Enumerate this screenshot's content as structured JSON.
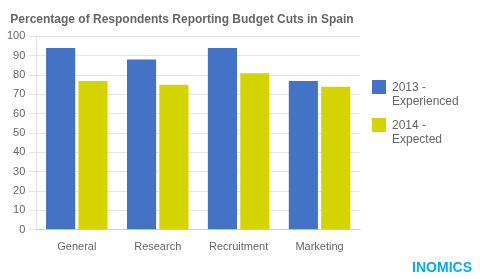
{
  "chart_data": {
    "type": "bar",
    "title": "Percentage of Respondents Reporting Budget Cuts in Spain",
    "categories": [
      "General",
      "Research",
      "Recruitment",
      "Marketing"
    ],
    "series": [
      {
        "name": "2013 -\nExperienced",
        "color": "#4472C4",
        "values": [
          94,
          88,
          94,
          77
        ]
      },
      {
        "name": "2014 -\nExpected",
        "color": "#D4D400",
        "values": [
          77,
          75,
          81,
          74
        ]
      }
    ],
    "ylim": [
      0,
      100
    ],
    "yticks": [
      0,
      10,
      20,
      30,
      40,
      50,
      60,
      70,
      80,
      90,
      100
    ],
    "grid": true,
    "legend": "right",
    "annotations": [
      {
        "text": "INOMICS",
        "color": "#00AEEF"
      }
    ]
  }
}
